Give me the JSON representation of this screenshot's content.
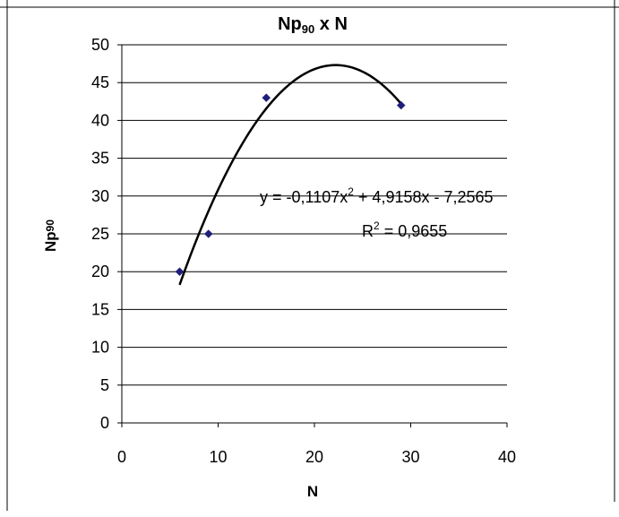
{
  "chart_data": {
    "type": "scatter",
    "title": {
      "main": "Np",
      "sub": "90",
      "suffix": " x N"
    },
    "xlabel": "N",
    "ylabel": {
      "main": "Np",
      "sub": "90"
    },
    "xlim": [
      0,
      40
    ],
    "ylim": [
      0,
      50
    ],
    "xticks": [
      "0",
      "10",
      "20",
      "30",
      "40"
    ],
    "yticks": [
      "0",
      "5",
      "10",
      "15",
      "20",
      "25",
      "30",
      "35",
      "40",
      "45",
      "50"
    ],
    "grid": "horizontal",
    "series": [
      {
        "x": [
          6,
          9,
          15,
          29
        ],
        "y": [
          20,
          25,
          43,
          42
        ],
        "color": "#1f1f7a",
        "marker": "diamond"
      }
    ],
    "trendline": {
      "type": "polynomial",
      "coefficients": {
        "a": -0.1107,
        "b": 4.9158,
        "c": -7.2565
      },
      "x_range": [
        6,
        29
      ],
      "color": "#000000"
    },
    "annotations": {
      "equation": {
        "pre": "y = -0,1107x",
        "sup": "2",
        "post": " + 4,9158x - 7,2565"
      },
      "r2": {
        "pre": "R",
        "sup": "2",
        "post": " = 0,9655"
      }
    }
  }
}
